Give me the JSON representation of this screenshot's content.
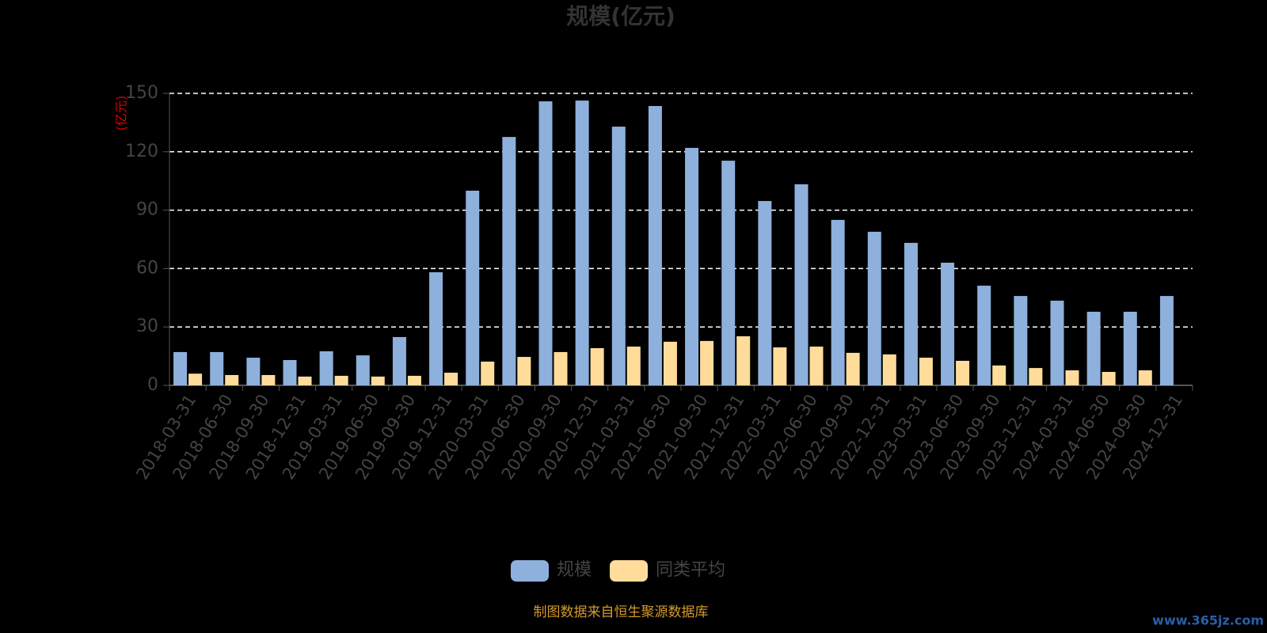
{
  "chart_data": {
    "type": "bar",
    "title": "规模(亿元)",
    "y_axis_label": "(亿元)",
    "categories": [
      "2018-03-31",
      "2018-06-30",
      "2018-09-30",
      "2018-12-31",
      "2019-03-31",
      "2019-06-30",
      "2019-09-30",
      "2019-12-31",
      "2020-03-31",
      "2020-06-30",
      "2020-09-30",
      "2020-12-31",
      "2021-03-31",
      "2021-06-30",
      "2021-09-30",
      "2021-12-31",
      "2022-03-31",
      "2022-06-30",
      "2022-09-30",
      "2022-12-31",
      "2023-03-31",
      "2023-06-30",
      "2023-09-30",
      "2023-12-31",
      "2024-03-31",
      "2024-06-30",
      "2024-09-30",
      "2024-12-31"
    ],
    "series": [
      {
        "name": "规模",
        "color": "#8eb0dd",
        "values": [
          17.1,
          17.1,
          14.2,
          13,
          17.5,
          15.4,
          24.8,
          58.1,
          100,
          127.6,
          145.9,
          146.3,
          132.9,
          143.5,
          122,
          115.4,
          94.7,
          103.3,
          85,
          78.9,
          73.2,
          63,
          51.2,
          45.9,
          43.5,
          37.8,
          37.8,
          45.9
        ]
      },
      {
        "name": "同类平均",
        "color": "#ffdc9a",
        "values": [
          6,
          5.3,
          5.3,
          4.5,
          4.9,
          4.5,
          4.9,
          6.5,
          12.2,
          14.6,
          17.1,
          19.1,
          19.9,
          22.4,
          22.8,
          25.2,
          19.5,
          19.9,
          16.7,
          15.9,
          14.2,
          12.6,
          10.2,
          8.9,
          7.7,
          6.9,
          7.7,
          null
        ]
      }
    ],
    "ylim": [
      0,
      150
    ],
    "yticks": [
      0,
      30,
      60,
      90,
      120,
      150
    ],
    "grid": true,
    "source_note": "制图数据来自恒生聚源数据库",
    "watermark": "www.365jz.com"
  }
}
